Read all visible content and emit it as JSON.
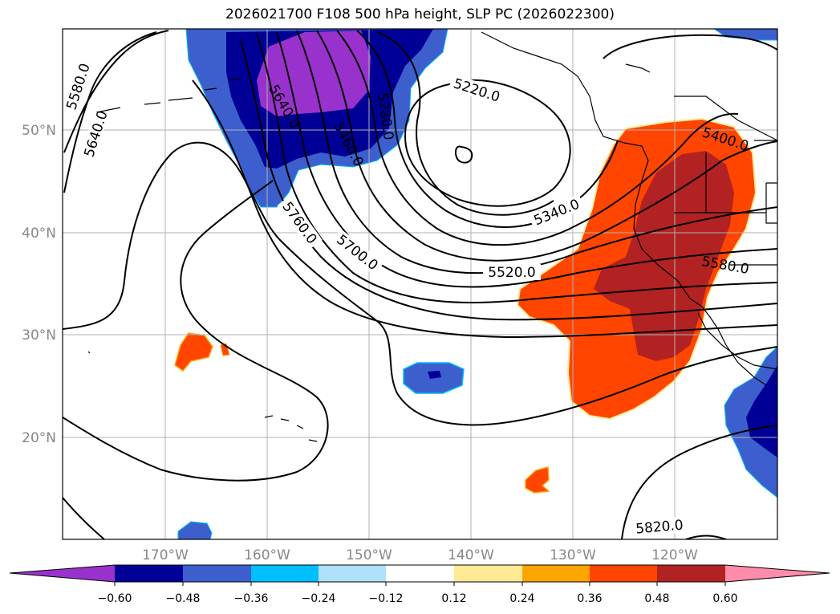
{
  "title": "2026021700 F108 500 hPa height, SLP PC (2026022300)",
  "map": {
    "lat_labels": [
      "50°N",
      "40°N",
      "30°N",
      "20°N"
    ],
    "lon_labels": [
      "170°W",
      "160°W",
      "150°W",
      "140°W",
      "130°W",
      "120°W"
    ],
    "contour_labels": [
      "5580.0",
      "5640.0",
      "5640.0",
      "5280.0",
      "5460.0",
      "5220.0",
      "5400.0",
      "5340.0",
      "5760.0",
      "5700.0",
      "5520.0",
      "5580.0",
      "5820.0"
    ]
  },
  "colorbar": {
    "tick_labels": [
      "−0.60",
      "−0.48",
      "−0.36",
      "−0.24",
      "−0.12",
      "0.12",
      "0.24",
      "0.36",
      "0.48",
      "0.60"
    ],
    "colors": [
      "#9932cc",
      "#000096",
      "#3c5fcd",
      "#00bfff",
      "#afe1fa",
      "#ffffff",
      "#ffeb96",
      "#ffa500",
      "#ff4500",
      "#b22222",
      "#ff8caa"
    ]
  }
}
